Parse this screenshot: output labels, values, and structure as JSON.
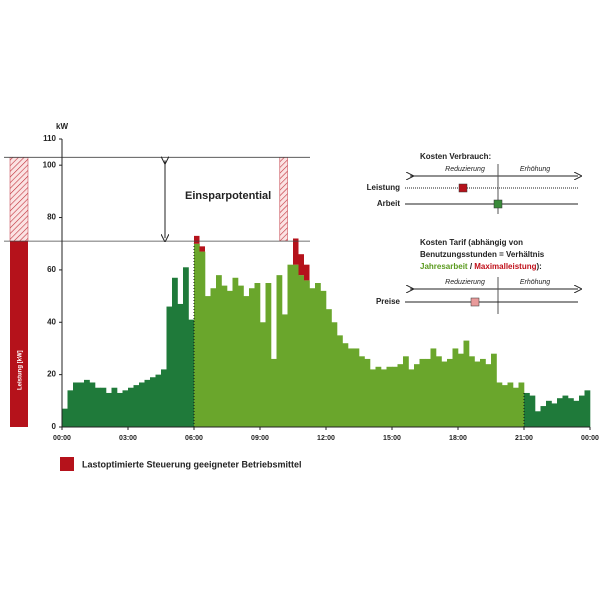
{
  "chart_data": {
    "type": "step-area",
    "y_label": "kW",
    "side_label": "Leistung [kW]",
    "annotation": "Einsparpotential",
    "xlim": [
      0,
      24
    ],
    "xticks": [
      {
        "value": 0,
        "label": "00:00"
      },
      {
        "value": 3,
        "label": "03:00"
      },
      {
        "value": 6,
        "label": "06:00"
      },
      {
        "value": 9,
        "label": "09:00"
      },
      {
        "value": 12,
        "label": "12:00"
      },
      {
        "value": 15,
        "label": "15:00"
      },
      {
        "value": 18,
        "label": "18:00"
      },
      {
        "value": 21,
        "label": "21:00"
      },
      {
        "value": 24,
        "label": "00:00"
      }
    ],
    "ylim": [
      0,
      110
    ],
    "yticks": [
      0,
      20,
      40,
      60,
      80,
      100,
      110
    ],
    "reference_lines": [
      103,
      71
    ],
    "hatch_x": [
      9.9,
      10.25
    ],
    "x": [
      0,
      0.25,
      0.5,
      0.75,
      1,
      1.25,
      1.5,
      1.75,
      2,
      2.25,
      2.5,
      2.75,
      3,
      3.25,
      3.5,
      3.75,
      4,
      4.25,
      4.5,
      4.75,
      5,
      5.25,
      5.5,
      5.75,
      6,
      6.25,
      6.5,
      6.75,
      7,
      7.25,
      7.5,
      7.75,
      8,
      8.25,
      8.5,
      8.75,
      9,
      9.25,
      9.5,
      9.75,
      10,
      10.25,
      10.5,
      10.75,
      11,
      11.25,
      11.5,
      11.75,
      12,
      12.25,
      12.5,
      12.75,
      13,
      13.25,
      13.5,
      13.75,
      14,
      14.25,
      14.5,
      14.75,
      15,
      15.25,
      15.5,
      15.75,
      16,
      16.25,
      16.5,
      16.75,
      17,
      17.25,
      17.5,
      17.75,
      18,
      18.25,
      18.5,
      18.75,
      19,
      19.25,
      19.5,
      19.75,
      20,
      20.25,
      20.5,
      20.75,
      21,
      21.25,
      21.5,
      21.75,
      22,
      22.25,
      22.5,
      22.75,
      23,
      23.25,
      23.5,
      23.75
    ],
    "values": [
      7,
      14,
      17,
      17,
      18,
      17,
      15,
      15,
      13,
      15,
      13,
      14,
      15,
      16,
      17,
      18,
      19,
      20,
      22,
      46,
      57,
      47,
      61,
      41,
      70,
      67,
      50,
      53,
      58,
      54,
      52,
      57,
      54,
      50,
      53,
      55,
      40,
      55,
      26,
      58,
      43,
      62,
      62,
      58,
      56,
      53,
      55,
      52,
      45,
      40,
      35,
      32,
      30,
      30,
      27,
      26,
      22,
      23,
      22,
      23,
      23,
      24,
      27,
      22,
      24,
      26,
      26,
      30,
      27,
      25,
      26,
      30,
      28,
      33,
      27,
      25,
      26,
      24,
      28,
      17,
      16,
      17,
      15,
      17,
      13,
      12,
      6,
      8,
      10,
      9,
      11,
      12,
      11,
      10,
      12,
      14
    ],
    "regions": [
      {
        "from": 0,
        "to": 6,
        "color": "#1f7a3a"
      },
      {
        "from": 6,
        "to": 21,
        "color": "#6aa62c"
      },
      {
        "from": 21,
        "to": 24,
        "color": "#1f7a3a"
      }
    ],
    "series": [
      {
        "name": "Lastoptimierte Steuerung geeigneter Betriebsmittel",
        "color": "#b5121b",
        "x": [
          6,
          6.25,
          10.5,
          10.75,
          11
        ],
        "values": [
          3,
          2,
          10,
          8,
          6
        ]
      }
    ]
  },
  "inset": {
    "title1": "Kosten Verbrauch:",
    "reduce1": "Reduzierung",
    "increase1": "Erhöhung",
    "row1": "Leistung",
    "row2": "Arbeit",
    "title2a": "Kosten Tarif (abhängig von",
    "title2b": "Benutzungsstunden = Verhältnis",
    "title2c": "Jahresarbeit",
    "title2d": " / ",
    "title2e": "Maximalleistung",
    "title2f": "):",
    "reduce2": "Reduzierung",
    "increase2": "Erhöhung",
    "row3": "Preise"
  }
}
